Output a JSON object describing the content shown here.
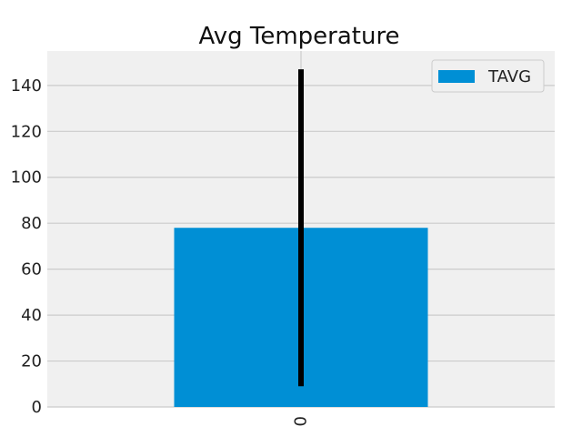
{
  "chart_data": {
    "type": "bar",
    "title": "Avg Temperature",
    "xlabel": "",
    "ylabel": "",
    "categories": [
      "0"
    ],
    "series": [
      {
        "name": "TAVG",
        "values": [
          78
        ],
        "error": [
          69
        ]
      }
    ],
    "ylim": [
      0,
      155
    ],
    "yticks": [
      0,
      20,
      40,
      60,
      80,
      100,
      120,
      140
    ],
    "grid": true,
    "legend": "top-right",
    "colors": {
      "bar": "#008fd5",
      "error_bar": "#000000",
      "plot_background": "#f0f0f0",
      "grid": "#cbcbcb"
    }
  }
}
